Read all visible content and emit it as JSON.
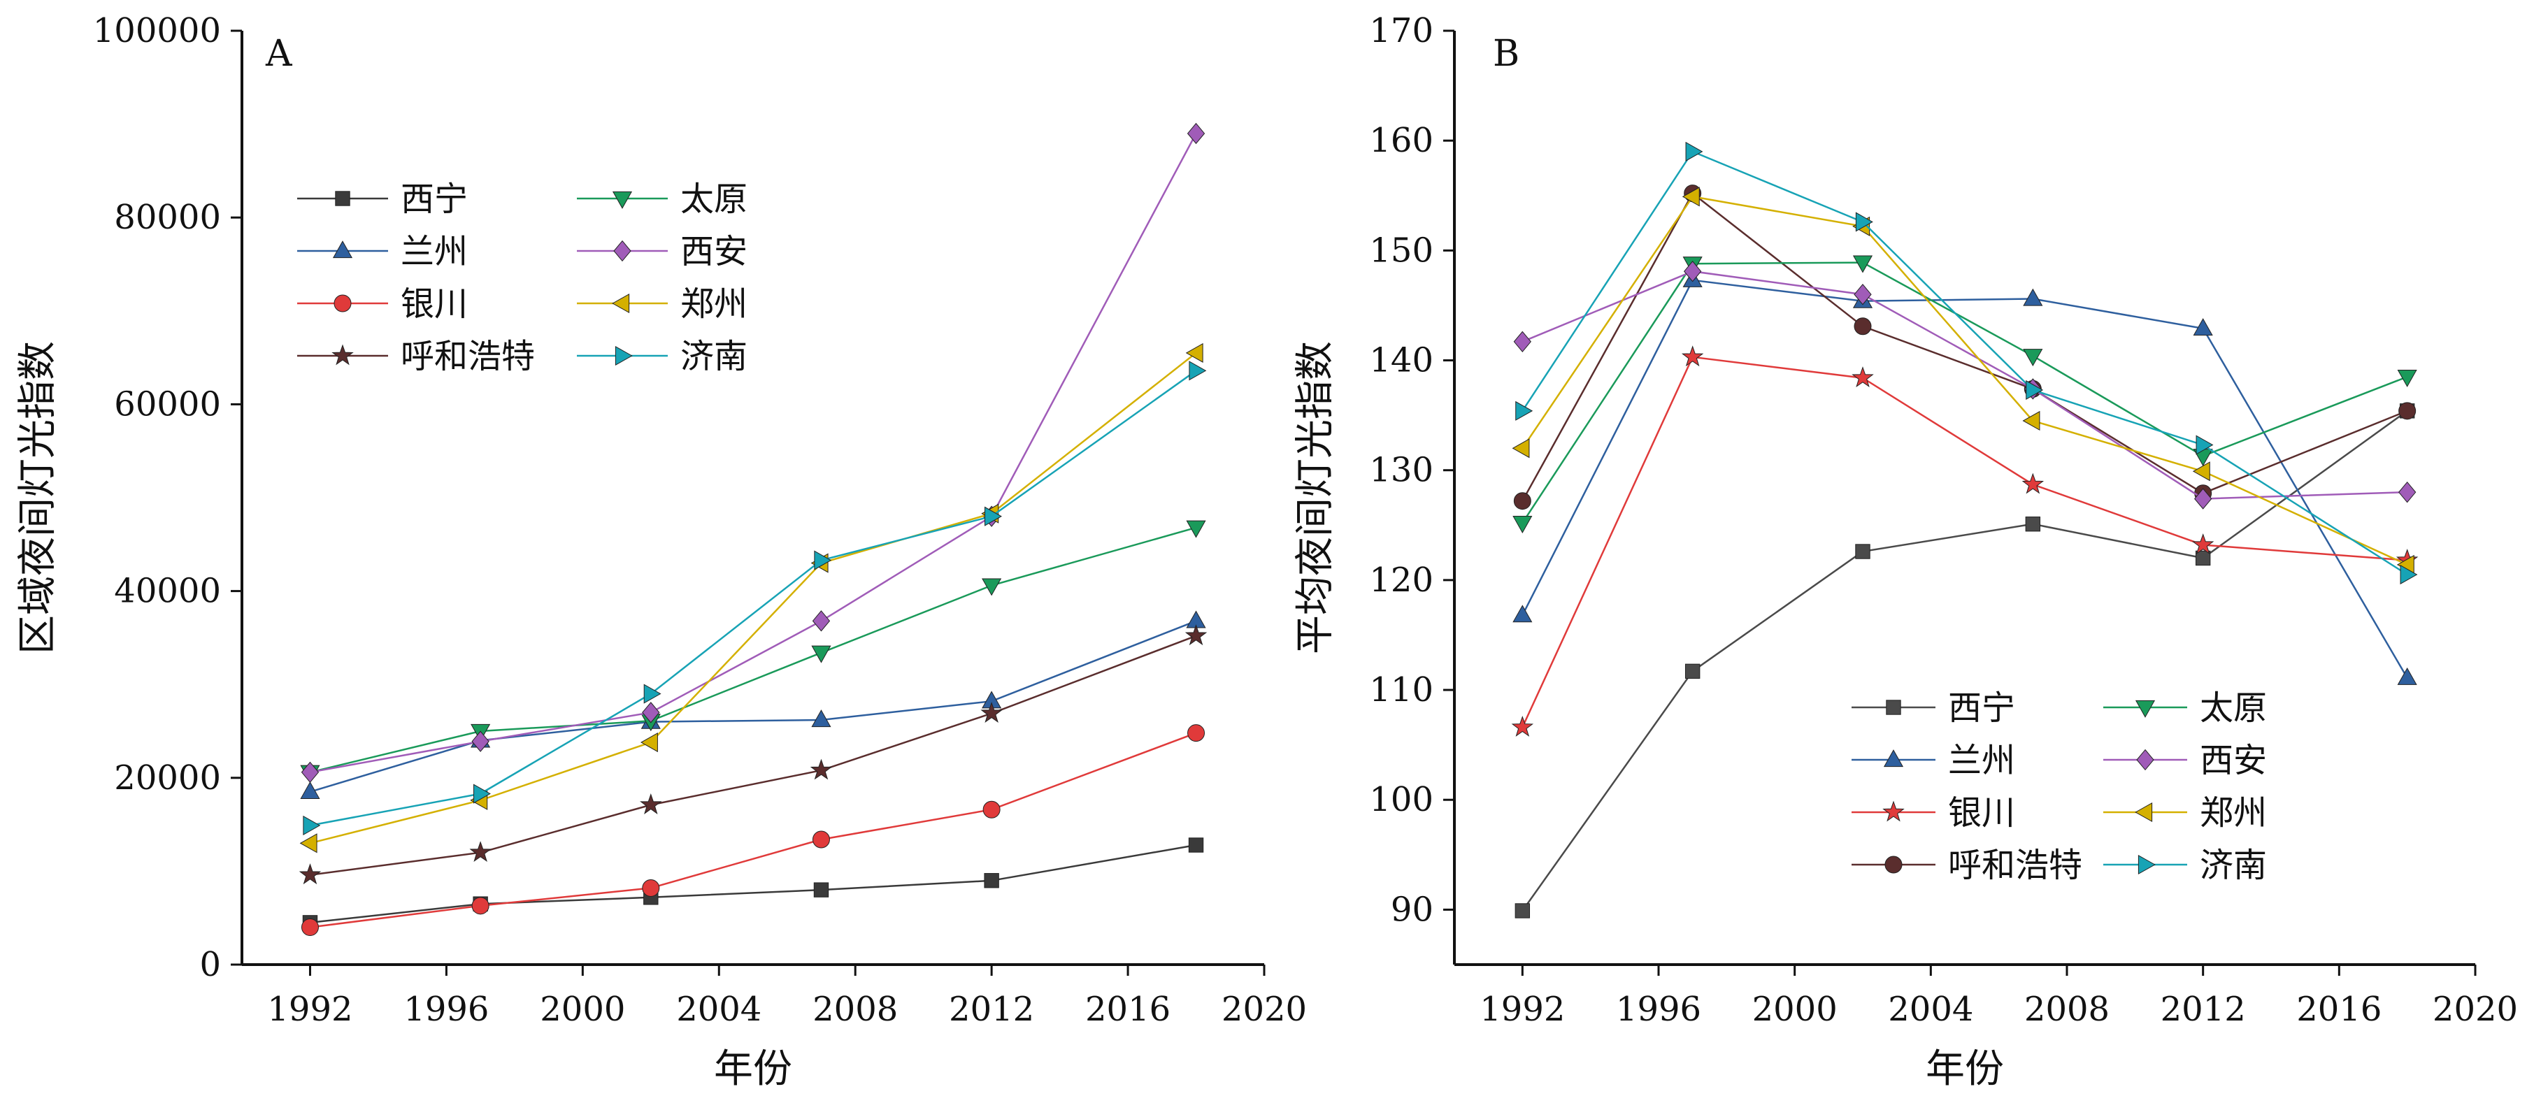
{
  "chart_data": [
    {
      "panel_letter": "A",
      "type": "line",
      "title": "",
      "xlabel": "年份",
      "ylabel": "区域夜间灯光指数",
      "xlim": [
        1990,
        2020
      ],
      "ylim": [
        0,
        100000
      ],
      "x_ticks": [
        "1992",
        "1996",
        "2000",
        "2004",
        "2008",
        "2012",
        "2016",
        "2020"
      ],
      "y_ticks": [
        "0",
        "20000",
        "40000",
        "60000",
        "80000",
        "100000"
      ],
      "grid": false,
      "legend": "upper-left, two columns",
      "x": [
        1992,
        1997,
        2002,
        2007,
        2012,
        2018
      ],
      "series": [
        {
          "name": "西宁",
          "color": "#3a3a3a",
          "marker": "square",
          "values": [
            4500,
            6500,
            7200,
            8000,
            9000,
            12800
          ]
        },
        {
          "name": "兰州",
          "color": "#2e5f9e",
          "marker": "triangle-up",
          "values": [
            18500,
            24000,
            26000,
            26200,
            28200,
            36800
          ]
        },
        {
          "name": "银川",
          "color": "#e03a3a",
          "marker": "circle",
          "values": [
            4000,
            6300,
            8200,
            13400,
            16600,
            24800
          ]
        },
        {
          "name": "呼和浩特",
          "color": "#5a2d2d",
          "marker": "star",
          "values": [
            9600,
            12000,
            17100,
            20800,
            26900,
            35200
          ]
        },
        {
          "name": "太原",
          "color": "#1a9a5a",
          "marker": "triangle-down",
          "values": [
            20600,
            25000,
            26100,
            33400,
            40600,
            46800
          ]
        },
        {
          "name": "西安",
          "color": "#a05cb8",
          "marker": "diamond",
          "values": [
            20600,
            23900,
            27000,
            36800,
            48000,
            89000
          ]
        },
        {
          "name": "郑州",
          "color": "#d4b000",
          "marker": "triangle-left",
          "values": [
            13000,
            17600,
            23800,
            43000,
            48300,
            65500
          ]
        },
        {
          "name": "济南",
          "color": "#17a3b5",
          "marker": "triangle-right",
          "values": [
            14900,
            18300,
            29000,
            43300,
            48000,
            63600
          ]
        }
      ]
    },
    {
      "panel_letter": "B",
      "type": "line",
      "title": "",
      "xlabel": "年份",
      "ylabel": "平均夜间灯光指数",
      "xlim": [
        1990,
        2020
      ],
      "ylim": [
        85,
        170
      ],
      "x_ticks": [
        "1992",
        "1996",
        "2000",
        "2004",
        "2008",
        "2012",
        "2016",
        "2020"
      ],
      "y_ticks": [
        "90",
        "100",
        "110",
        "120",
        "130",
        "140",
        "150",
        "160",
        "170"
      ],
      "grid": false,
      "legend": "lower-center, two columns",
      "x": [
        1992,
        1997,
        2002,
        2007,
        2012,
        2018
      ],
      "series": [
        {
          "name": "西宁",
          "color": "#4a4a4a",
          "marker": "square",
          "values": [
            89.9,
            111.7,
            122.6,
            125.1,
            122.0,
            135.4
          ]
        },
        {
          "name": "兰州",
          "color": "#2e5f9e",
          "marker": "triangle-up",
          "values": [
            116.8,
            147.3,
            145.4,
            145.6,
            142.9,
            111.1
          ]
        },
        {
          "name": "银川",
          "color": "#e03a3a",
          "marker": "star",
          "values": [
            106.6,
            140.3,
            138.4,
            128.7,
            123.2,
            121.8
          ]
        },
        {
          "name": "呼和浩特",
          "color": "#5a2d2d",
          "marker": "circle",
          "values": [
            127.2,
            155.2,
            143.1,
            137.4,
            127.9,
            135.4
          ]
        },
        {
          "name": "太原",
          "color": "#1a9a5a",
          "marker": "triangle-down",
          "values": [
            125.2,
            148.8,
            148.9,
            140.4,
            131.3,
            138.5
          ]
        },
        {
          "name": "西安",
          "color": "#a05cb8",
          "marker": "diamond",
          "values": [
            141.7,
            148.1,
            146.0,
            137.4,
            127.4,
            128.0
          ]
        },
        {
          "name": "郑州",
          "color": "#d4b000",
          "marker": "triangle-left",
          "values": [
            132.0,
            154.9,
            152.2,
            134.5,
            129.9,
            121.4
          ]
        },
        {
          "name": "济南",
          "color": "#17a3b5",
          "marker": "triangle-right",
          "values": [
            135.4,
            159.0,
            152.6,
            137.3,
            132.3,
            120.5
          ]
        }
      ]
    }
  ]
}
